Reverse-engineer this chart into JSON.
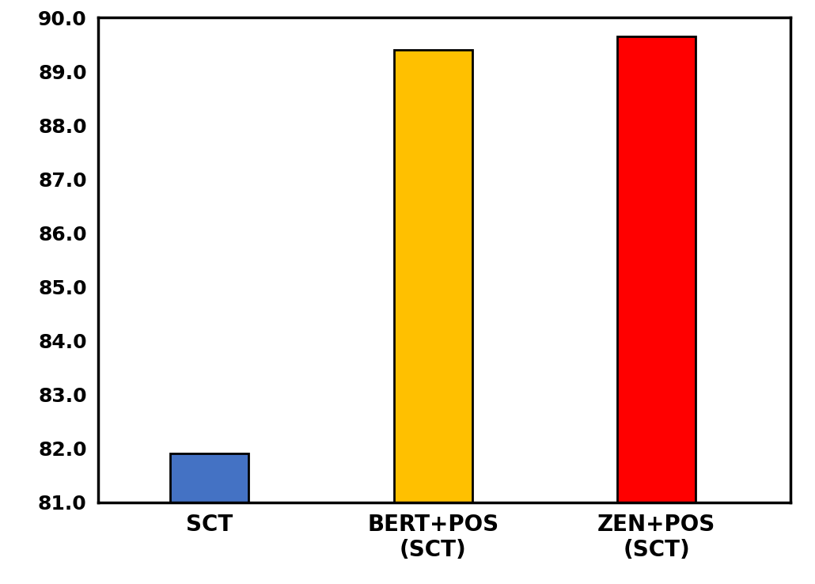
{
  "categories": [
    "SCT",
    "BERT+POS\n(SCT)",
    "ZEN+POS\n(SCT)"
  ],
  "values": [
    81.9,
    89.4,
    89.65
  ],
  "bar_colors": [
    "#4472C4",
    "#FFC000",
    "#FF0000"
  ],
  "bar_edgecolors": [
    "#000000",
    "#000000",
    "#000000"
  ],
  "bar_edgewidth": 2.0,
  "ymin": 81.0,
  "ymax": 90.0,
  "yticks": [
    81.0,
    82.0,
    83.0,
    84.0,
    85.0,
    86.0,
    87.0,
    88.0,
    89.0,
    90.0
  ],
  "tick_fontsize": 18,
  "label_fontsize": 20,
  "bar_width": 0.35,
  "x_positions": [
    0.5,
    1.5,
    2.5
  ],
  "figsize": [
    10.3,
    7.38
  ],
  "dpi": 100
}
